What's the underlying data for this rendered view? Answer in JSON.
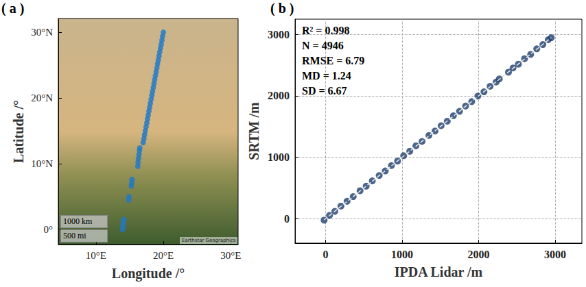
{
  "chart_data": [
    {
      "type": "scatter",
      "title": "( a )",
      "x_label": "Longitude /°",
      "y_label": "Latitude /°",
      "xlim": [
        4.4,
        31.1
      ],
      "ylim": [
        -2.3,
        32.1
      ],
      "xticks": [
        {
          "value": 10,
          "label": "10°E"
        },
        {
          "value": 20,
          "label": "20°E"
        },
        {
          "value": 30,
          "label": "30°E"
        }
      ],
      "yticks": [
        {
          "value": 0,
          "label": "0°"
        },
        {
          "value": 10,
          "label": "10°N"
        },
        {
          "value": 20,
          "label": "20°N"
        },
        {
          "value": 30,
          "label": "30°N"
        }
      ],
      "grid": false,
      "annotations": [
        "1000 km",
        "500 mi",
        "Earthstar Geographics"
      ],
      "color": "#1e78c8",
      "marker": "circle",
      "x": [
        13.95,
        14.0,
        14.05,
        14.1,
        14.85,
        14.9,
        15.25,
        15.3,
        15.35,
        16.2,
        16.25,
        16.3,
        16.38,
        16.45,
        16.5,
        17.0,
        17.11,
        17.21,
        17.32,
        17.43,
        17.54,
        17.64,
        17.75,
        17.86,
        17.96,
        18.07,
        18.18,
        18.29,
        18.39,
        18.5,
        18.61,
        18.71,
        18.82,
        18.93,
        19.04,
        19.14,
        19.25,
        19.36,
        19.46,
        19.57,
        19.68,
        19.79,
        19.89,
        20.0
      ],
      "values": [
        0.0,
        0.5,
        1.0,
        1.5,
        4.5,
        5.0,
        6.6,
        7.1,
        7.6,
        9.6,
        10.2,
        10.8,
        11.4,
        12.0,
        12.4,
        13.2,
        13.8,
        14.4,
        15.0,
        15.6,
        16.2,
        16.8,
        17.4,
        18.0,
        18.6,
        19.2,
        19.8,
        20.4,
        21.0,
        21.6,
        22.2,
        22.8,
        23.4,
        24.0,
        24.6,
        25.2,
        25.8,
        26.4,
        27.0,
        27.6,
        28.2,
        28.8,
        29.4,
        30.0
      ]
    },
    {
      "type": "scatter",
      "title": "( b )",
      "x_label": "IPDA Lidar /m",
      "y_label": "SRTM /m",
      "xlim": [
        -400,
        3350
      ],
      "ylim": [
        -400,
        3250
      ],
      "xticks": [
        0,
        1000,
        2000,
        3000
      ],
      "yticks": [
        0,
        1000,
        2000,
        3000
      ],
      "grid": true,
      "annotations": [
        "R² = 0.998",
        "N = 4946",
        "RMSE = 6.79",
        "MD = 1.24",
        "SD = 6.67"
      ],
      "series": [
        {
          "type": "scatter",
          "marker": "circle",
          "color": "#1f3f6e",
          "x": [
            -20,
            50,
            120,
            200,
            280,
            360,
            450,
            530,
            610,
            700,
            780,
            860,
            940,
            1020,
            1100,
            1180,
            1260,
            1350,
            1430,
            1510,
            1590,
            1670,
            1750,
            1830,
            1910,
            1990,
            2070,
            2150,
            2230,
            2270,
            2390,
            2450,
            2520,
            2600,
            2680,
            2760,
            2840,
            2910,
            2950
          ],
          "values": [
            -25,
            52,
            118,
            204,
            283,
            358,
            455,
            528,
            615,
            702,
            777,
            864,
            938,
            1025,
            1098,
            1186,
            1258,
            1355,
            1427,
            1514,
            1588,
            1676,
            1748,
            1834,
            1907,
            1996,
            2066,
            2156,
            2226,
            2276,
            2386,
            2455,
            2517,
            2606,
            2676,
            2766,
            2836,
            2915,
            2948
          ]
        },
        {
          "type": "line",
          "line_style": "dashed",
          "color": "#e6e6e6",
          "x": [
            -20,
            2950
          ],
          "values": [
            -20,
            2950
          ]
        }
      ]
    }
  ]
}
